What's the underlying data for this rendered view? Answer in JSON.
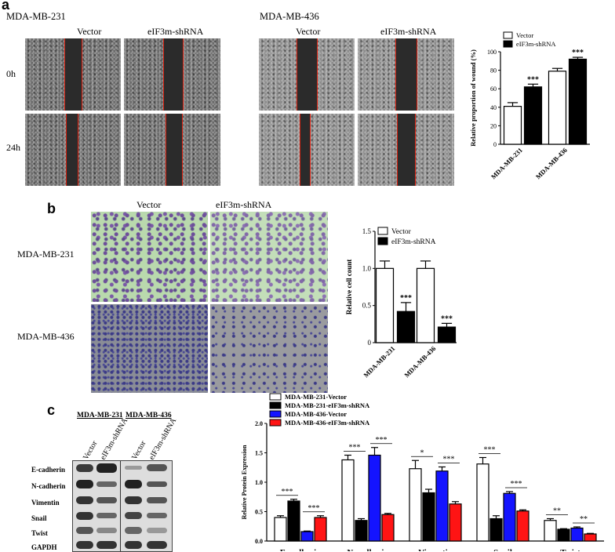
{
  "panels": {
    "a": "a",
    "b": "b",
    "c": "c"
  },
  "panel_a": {
    "cell_lines": [
      "MDA-MB-231",
      "MDA-MB-436"
    ],
    "columns": [
      "Vector",
      "eIF3m-shRNA"
    ],
    "rows": [
      "0h",
      "24h"
    ]
  },
  "panel_b": {
    "columns": [
      "Vector",
      "eIF3m-shRNA"
    ],
    "rows": [
      "MDA-MB-231",
      "MDA-MB-436"
    ]
  },
  "panel_c": {
    "blot_headers": [
      "MDA-MB-231",
      "MDA-MB-436"
    ],
    "blot_lanes": [
      "Vector",
      "eIF3m-shRNA",
      "Vector",
      "eIF3m-shRNA"
    ],
    "blot_rows": [
      "E-cadherin",
      "N-cadherin",
      "Vimentin",
      "Snail",
      "Twist",
      "GAPDH"
    ]
  },
  "chart_data": [
    {
      "id": "wound",
      "type": "bar",
      "categories": [
        "MDA-MB-231",
        "MDA-MB-436"
      ],
      "series": [
        {
          "name": "Vector",
          "values": [
            41,
            79
          ],
          "errors": [
            4,
            3
          ],
          "color": "#ffffff"
        },
        {
          "name": "eIF3m-shRNA",
          "values": [
            62,
            92
          ],
          "errors": [
            3,
            2
          ],
          "color": "#000000"
        }
      ],
      "ylabel": "Relative proportion of wound (%)",
      "ylim": [
        0,
        100
      ],
      "yticks": [
        "0",
        "20",
        "40",
        "60",
        "80",
        "100"
      ],
      "annotations": [
        "***",
        "***"
      ],
      "legend": "top"
    },
    {
      "id": "transwell",
      "type": "bar",
      "categories": [
        "MDA-MB-231",
        "MDA-MB-436"
      ],
      "series": [
        {
          "name": "Vector",
          "values": [
            1.0,
            1.0
          ],
          "errors": [
            0.1,
            0.1
          ],
          "color": "#ffffff"
        },
        {
          "name": "eIF3m-shRNA",
          "values": [
            0.42,
            0.21
          ],
          "errors": [
            0.12,
            0.05
          ],
          "color": "#000000"
        }
      ],
      "ylabel": "Relative cell count",
      "ylim": [
        0,
        1.5
      ],
      "yticks": [
        "0",
        "0.5",
        "1.0",
        "1.5"
      ],
      "annotations": [
        "***",
        "***"
      ],
      "legend": "top"
    },
    {
      "id": "protein",
      "type": "bar",
      "categories": [
        "E-cadherin",
        "N-cadherin",
        "Vimentin",
        "Snail",
        "Twist"
      ],
      "series": [
        {
          "name": "MDA-MB-231-Vector",
          "values": [
            0.4,
            1.38,
            1.23,
            1.31,
            0.35
          ],
          "errors": [
            0.03,
            0.08,
            0.14,
            0.11,
            0.03
          ],
          "color": "#ffffff"
        },
        {
          "name": "MDA-MB-231-eIF3m-shRNA",
          "values": [
            0.68,
            0.35,
            0.82,
            0.38,
            0.2
          ],
          "errors": [
            0.03,
            0.03,
            0.06,
            0.05,
            0.01
          ],
          "color": "#000000"
        },
        {
          "name": "MDA-MB-436-Vector",
          "values": [
            0.16,
            1.46,
            1.19,
            0.81,
            0.22
          ],
          "errors": [
            0.01,
            0.13,
            0.07,
            0.03,
            0.02
          ],
          "color": "#1414ff"
        },
        {
          "name": "MDA-MB-436-eIF3m-shRNA",
          "values": [
            0.4,
            0.45,
            0.63,
            0.51,
            0.12
          ],
          "errors": [
            0.03,
            0.02,
            0.04,
            0.02,
            0.01
          ],
          "color": "#ff1414"
        }
      ],
      "ylabel": "Relative Protein Expression",
      "ylim": [
        0,
        2.0
      ],
      "yticks": [
        "0.0",
        "0.5",
        "1.0",
        "1.5",
        "2.0"
      ],
      "significance": [
        {
          "category": "E-cadherin",
          "marks": [
            "***",
            "***"
          ]
        },
        {
          "category": "N-cadherin",
          "marks": [
            "***",
            "***"
          ]
        },
        {
          "category": "Vimentin",
          "marks": [
            "*",
            "***"
          ]
        },
        {
          "category": "Snail",
          "marks": [
            "***",
            "***"
          ]
        },
        {
          "category": "Twist",
          "marks": [
            "**",
            "**"
          ]
        }
      ],
      "legend": "top-left"
    }
  ]
}
